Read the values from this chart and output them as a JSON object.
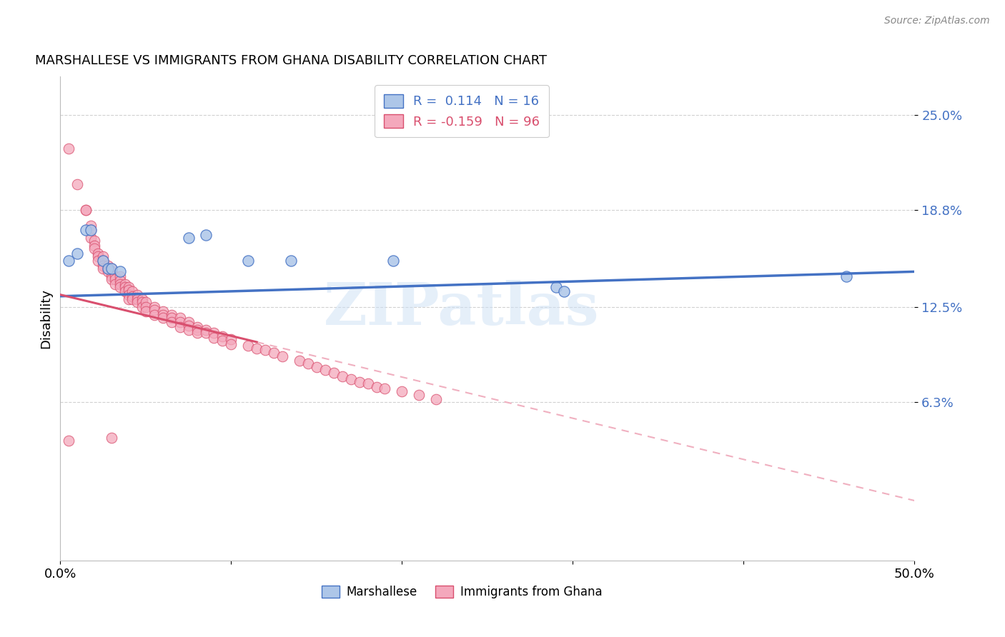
{
  "title": "MARSHALLESE VS IMMIGRANTS FROM GHANA DISABILITY CORRELATION CHART",
  "source": "Source: ZipAtlas.com",
  "ylabel": "Disability",
  "ytick_labels": [
    "25.0%",
    "18.8%",
    "12.5%",
    "6.3%"
  ],
  "ytick_values": [
    0.25,
    0.188,
    0.125,
    0.063
  ],
  "xlim": [
    0.0,
    0.5
  ],
  "ylim": [
    -0.04,
    0.275
  ],
  "watermark": "ZIPatlas",
  "legend_r1": "R =  0.114   N = 16",
  "legend_r2": "R = -0.159   N = 96",
  "marshallese_color": "#adc6e8",
  "ghana_color": "#f4a8bc",
  "line_marshallese": "#4472c4",
  "line_ghana": "#d94f6e",
  "line_ghana_dash": "#f0b0c0",
  "marshallese_line_x": [
    0.0,
    0.5
  ],
  "marshallese_line_y": [
    0.132,
    0.148
  ],
  "ghana_line_x0": 0.0,
  "ghana_line_x_solid_end": 0.115,
  "ghana_line_x_dash_end": 0.5,
  "ghana_line_y0": 0.133,
  "ghana_line_slope": -0.268,
  "marshallese_points": [
    [
      0.005,
      0.155
    ],
    [
      0.01,
      0.16
    ],
    [
      0.015,
      0.175
    ],
    [
      0.018,
      0.175
    ],
    [
      0.025,
      0.155
    ],
    [
      0.028,
      0.15
    ],
    [
      0.03,
      0.15
    ],
    [
      0.035,
      0.148
    ],
    [
      0.075,
      0.17
    ],
    [
      0.085,
      0.172
    ],
    [
      0.11,
      0.155
    ],
    [
      0.135,
      0.155
    ],
    [
      0.195,
      0.155
    ],
    [
      0.29,
      0.138
    ],
    [
      0.295,
      0.135
    ],
    [
      0.46,
      0.145
    ]
  ],
  "ghana_points": [
    [
      0.005,
      0.228
    ],
    [
      0.01,
      0.205
    ],
    [
      0.015,
      0.188
    ],
    [
      0.015,
      0.188
    ],
    [
      0.018,
      0.178
    ],
    [
      0.018,
      0.175
    ],
    [
      0.018,
      0.17
    ],
    [
      0.02,
      0.168
    ],
    [
      0.02,
      0.165
    ],
    [
      0.02,
      0.163
    ],
    [
      0.022,
      0.16
    ],
    [
      0.022,
      0.158
    ],
    [
      0.022,
      0.155
    ],
    [
      0.025,
      0.158
    ],
    [
      0.025,
      0.155
    ],
    [
      0.025,
      0.152
    ],
    [
      0.025,
      0.15
    ],
    [
      0.028,
      0.152
    ],
    [
      0.028,
      0.15
    ],
    [
      0.028,
      0.148
    ],
    [
      0.03,
      0.15
    ],
    [
      0.03,
      0.148
    ],
    [
      0.03,
      0.145
    ],
    [
      0.03,
      0.143
    ],
    [
      0.032,
      0.145
    ],
    [
      0.032,
      0.143
    ],
    [
      0.032,
      0.14
    ],
    [
      0.035,
      0.145
    ],
    [
      0.035,
      0.142
    ],
    [
      0.035,
      0.14
    ],
    [
      0.035,
      0.138
    ],
    [
      0.038,
      0.14
    ],
    [
      0.038,
      0.138
    ],
    [
      0.038,
      0.135
    ],
    [
      0.04,
      0.138
    ],
    [
      0.04,
      0.136
    ],
    [
      0.04,
      0.133
    ],
    [
      0.04,
      0.13
    ],
    [
      0.042,
      0.135
    ],
    [
      0.042,
      0.132
    ],
    [
      0.042,
      0.13
    ],
    [
      0.045,
      0.133
    ],
    [
      0.045,
      0.13
    ],
    [
      0.045,
      0.128
    ],
    [
      0.048,
      0.13
    ],
    [
      0.048,
      0.128
    ],
    [
      0.048,
      0.125
    ],
    [
      0.05,
      0.128
    ],
    [
      0.05,
      0.125
    ],
    [
      0.05,
      0.122
    ],
    [
      0.055,
      0.125
    ],
    [
      0.055,
      0.123
    ],
    [
      0.055,
      0.12
    ],
    [
      0.06,
      0.122
    ],
    [
      0.06,
      0.12
    ],
    [
      0.06,
      0.118
    ],
    [
      0.065,
      0.12
    ],
    [
      0.065,
      0.118
    ],
    [
      0.065,
      0.115
    ],
    [
      0.07,
      0.118
    ],
    [
      0.07,
      0.115
    ],
    [
      0.07,
      0.112
    ],
    [
      0.075,
      0.115
    ],
    [
      0.075,
      0.113
    ],
    [
      0.075,
      0.11
    ],
    [
      0.08,
      0.112
    ],
    [
      0.08,
      0.11
    ],
    [
      0.08,
      0.108
    ],
    [
      0.085,
      0.11
    ],
    [
      0.085,
      0.108
    ],
    [
      0.09,
      0.108
    ],
    [
      0.09,
      0.105
    ],
    [
      0.095,
      0.106
    ],
    [
      0.095,
      0.103
    ],
    [
      0.1,
      0.104
    ],
    [
      0.1,
      0.101
    ],
    [
      0.11,
      0.1
    ],
    [
      0.115,
      0.098
    ],
    [
      0.12,
      0.097
    ],
    [
      0.125,
      0.095
    ],
    [
      0.13,
      0.093
    ],
    [
      0.14,
      0.09
    ],
    [
      0.145,
      0.088
    ],
    [
      0.15,
      0.086
    ],
    [
      0.155,
      0.084
    ],
    [
      0.16,
      0.082
    ],
    [
      0.165,
      0.08
    ],
    [
      0.17,
      0.078
    ],
    [
      0.175,
      0.076
    ],
    [
      0.18,
      0.075
    ],
    [
      0.185,
      0.073
    ],
    [
      0.19,
      0.072
    ],
    [
      0.2,
      0.07
    ],
    [
      0.21,
      0.068
    ],
    [
      0.22,
      0.065
    ],
    [
      0.03,
      0.04
    ],
    [
      0.005,
      0.038
    ]
  ]
}
